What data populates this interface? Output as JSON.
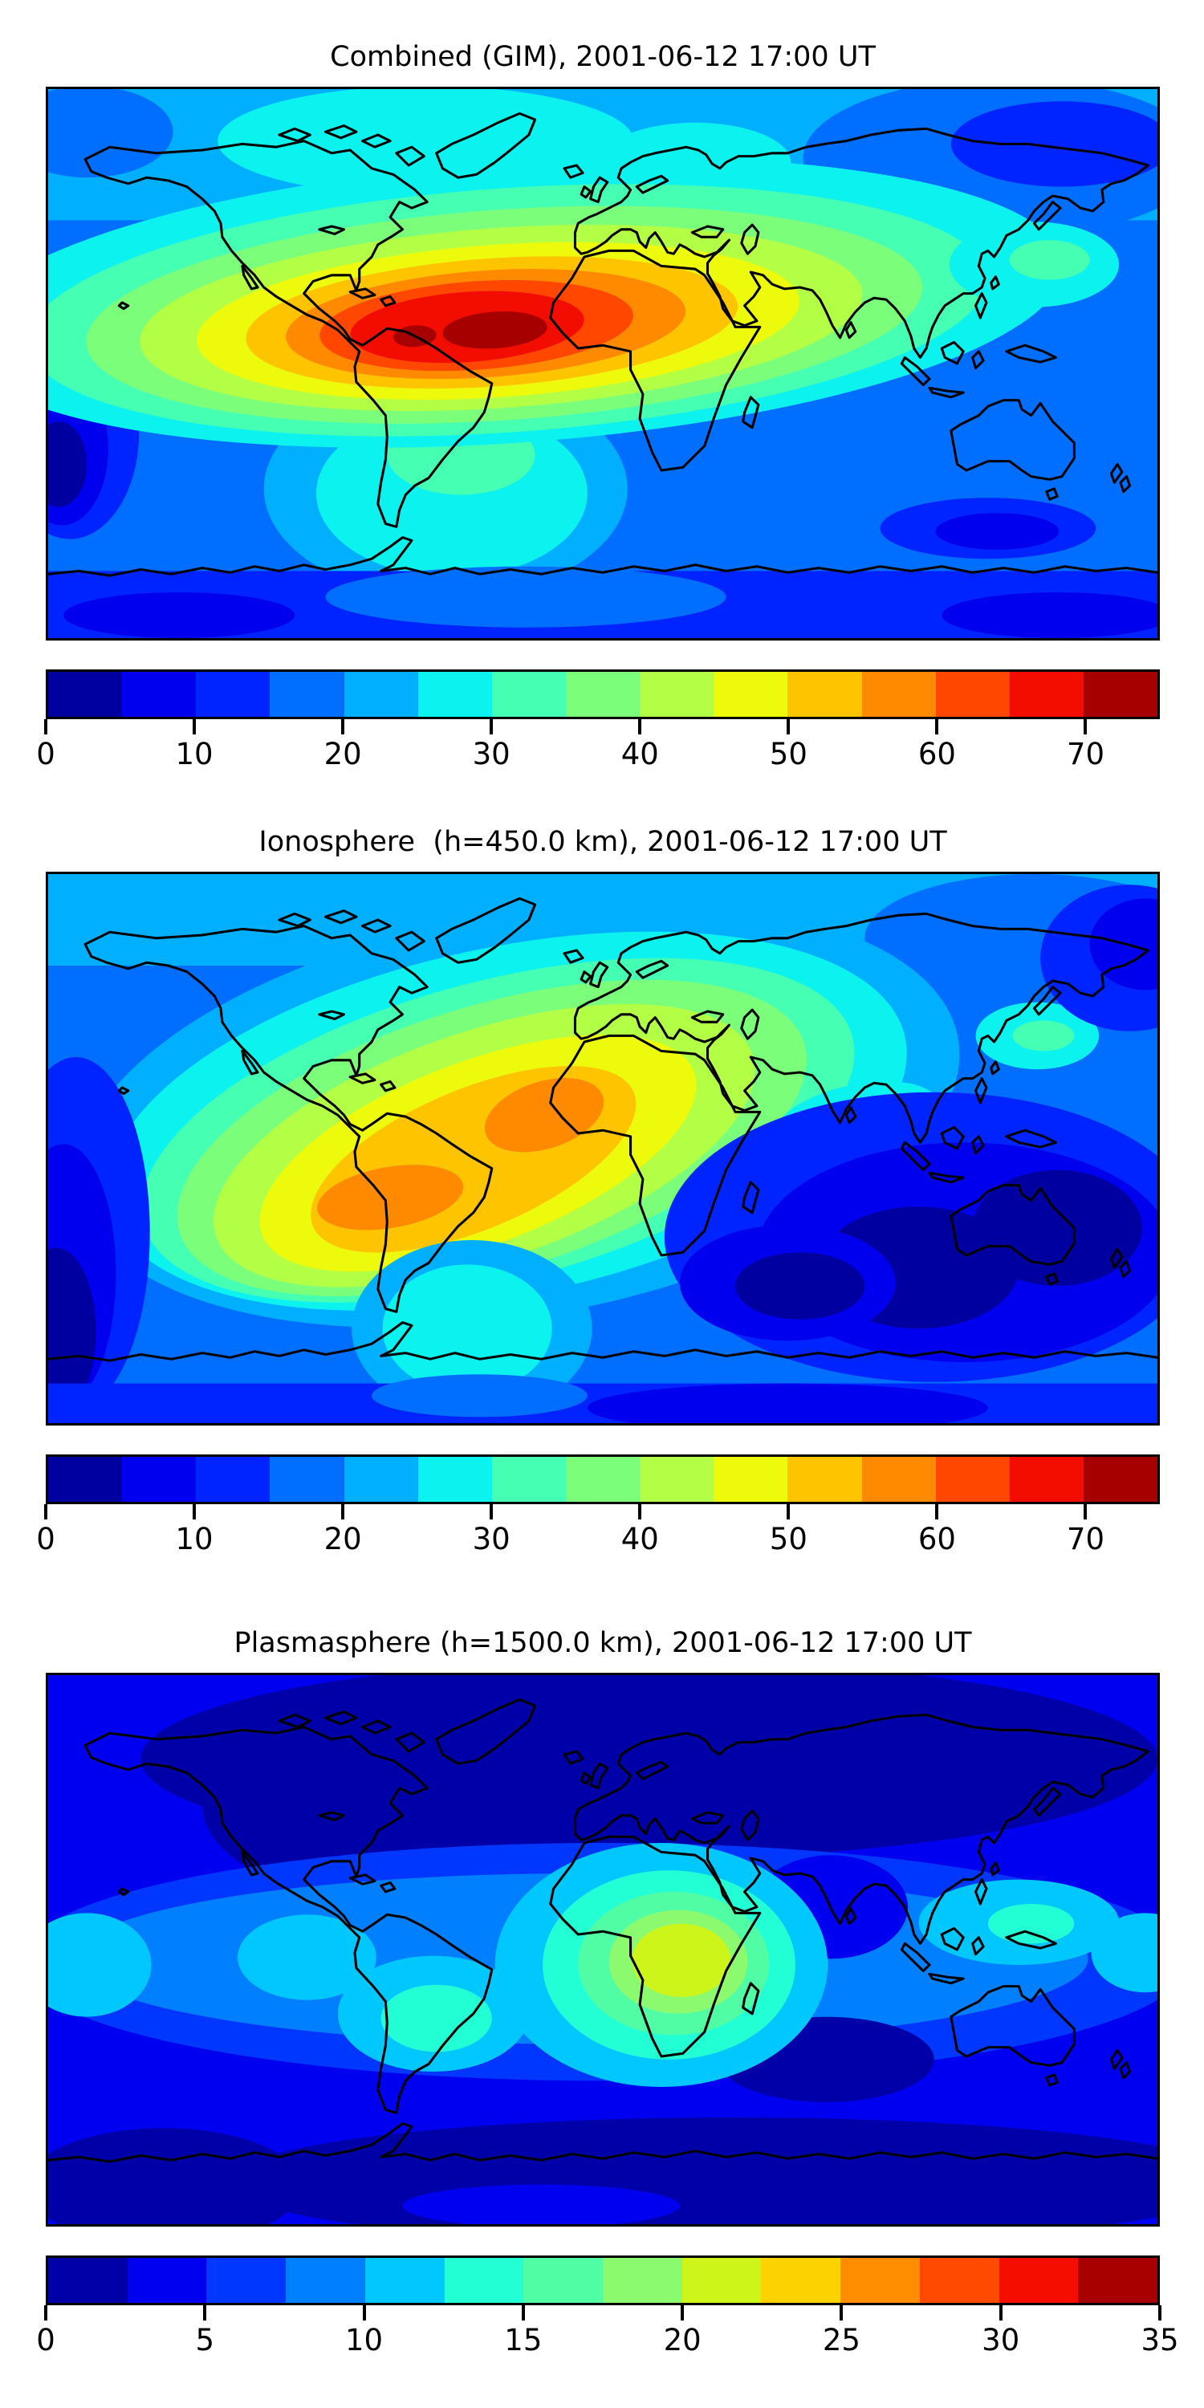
{
  "figure": {
    "kind": "matplotlib-style multi-panel filled contour world maps",
    "background": "#ffffff",
    "text_color": "#000000",
    "coastline_color": "#000000"
  },
  "panels": [
    {
      "id": "combined-gim",
      "title": "Combined (GIM), 2001-06-12 17:00 UT",
      "colorbar": {
        "vmin": 0,
        "vmax": 75,
        "tick_values": [
          0,
          10,
          20,
          30,
          40,
          50,
          60,
          70
        ],
        "tick_labels": [
          "0",
          "10",
          "20",
          "30",
          "40",
          "50",
          "60",
          "70"
        ],
        "colors": [
          "#0000a0",
          "#0000ee",
          "#0024ff",
          "#006eff",
          "#00b0ff",
          "#0cf2ee",
          "#45ffb3",
          "#7bff7b",
          "#b3ff45",
          "#edfa0b",
          "#ffc400",
          "#ff8a00",
          "#ff4700",
          "#f20d00",
          "#a60000"
        ]
      },
      "map": {
        "layers": [
          [
            "r",
            3,
            0,
            0,
            720,
            360,
            0
          ],
          [
            "r",
            4,
            0,
            0,
            720,
            86,
            0
          ],
          [
            "e",
            3,
            620,
            45,
            130,
            52,
            0
          ],
          [
            "e",
            2,
            658,
            36,
            72,
            28,
            0
          ],
          [
            "e",
            3,
            26,
            28,
            55,
            30,
            0
          ],
          [
            "e",
            5,
            245,
            34,
            135,
            36,
            0
          ],
          [
            "e",
            5,
            420,
            48,
            62,
            26,
            0
          ],
          [
            "e",
            4,
            258,
            262,
            118,
            72,
            0
          ],
          [
            "e",
            5,
            262,
            265,
            88,
            55,
            0
          ],
          [
            "e",
            6,
            268,
            240,
            48,
            26,
            0
          ],
          [
            "e",
            2,
            14,
            225,
            45,
            70,
            0
          ],
          [
            "e",
            1,
            9,
            236,
            30,
            50,
            0
          ],
          [
            "e",
            0,
            7,
            246,
            18,
            28,
            0
          ],
          [
            "r",
            2,
            0,
            316,
            720,
            44,
            0
          ],
          [
            "e",
            3,
            310,
            333,
            130,
            20,
            0
          ],
          [
            "e",
            1,
            85,
            345,
            75,
            15,
            0
          ],
          [
            "e",
            1,
            655,
            345,
            75,
            15,
            0
          ],
          [
            "e",
            2,
            610,
            288,
            70,
            20,
            0
          ],
          [
            "e",
            1,
            616,
            290,
            40,
            12,
            0
          ],
          [
            "e",
            5,
            300,
            140,
            360,
            92,
            -4
          ],
          [
            "e",
            6,
            298,
            145,
            312,
            80,
            -4
          ],
          [
            "e",
            7,
            296,
            148,
            272,
            69,
            -4
          ],
          [
            "e",
            8,
            294,
            150,
            235,
            59,
            -4
          ],
          [
            "e",
            9,
            292,
            152,
            196,
            50,
            -4
          ],
          [
            "e",
            10,
            288,
            153,
            160,
            42,
            -4
          ],
          [
            "e",
            11,
            284,
            154,
            130,
            35,
            -4
          ],
          [
            "e",
            12,
            278,
            155,
            102,
            29,
            -4
          ],
          [
            "e",
            13,
            272,
            156,
            76,
            23,
            -4
          ],
          [
            "e",
            14,
            290,
            158,
            34,
            12,
            -4
          ],
          [
            "e",
            14,
            238,
            162,
            14,
            7,
            -4
          ],
          [
            "e",
            5,
            640,
            115,
            55,
            28,
            0
          ],
          [
            "e",
            6,
            650,
            112,
            26,
            13,
            0
          ]
        ]
      }
    },
    {
      "id": "ionosphere",
      "title": "Ionosphere  (h=450.0 km), 2001-06-12 17:00 UT",
      "colorbar": {
        "vmin": 0,
        "vmax": 75,
        "tick_values": [
          0,
          10,
          20,
          30,
          40,
          50,
          60,
          70
        ],
        "tick_labels": [
          "0",
          "10",
          "20",
          "30",
          "40",
          "50",
          "60",
          "70"
        ],
        "colors": [
          "#0000a0",
          "#0000ee",
          "#0024ff",
          "#006eff",
          "#00b0ff",
          "#0cf2ee",
          "#45ffb3",
          "#7bff7b",
          "#b3ff45",
          "#edfa0b",
          "#ffc400",
          "#ff8a00",
          "#ff4700",
          "#f20d00",
          "#a60000"
        ]
      },
      "map": {
        "layers": [
          [
            "r",
            3,
            0,
            0,
            720,
            360,
            0
          ],
          [
            "r",
            4,
            0,
            0,
            720,
            60,
            0
          ],
          [
            "e",
            3,
            640,
            42,
            110,
            42,
            0
          ],
          [
            "e",
            4,
            305,
            158,
            290,
            132,
            -10
          ],
          [
            "e",
            5,
            298,
            162,
            264,
            114,
            -12
          ],
          [
            "e",
            6,
            292,
            168,
            238,
            98,
            -15
          ],
          [
            "e",
            7,
            288,
            173,
            212,
            87,
            -17
          ],
          [
            "e",
            8,
            283,
            178,
            184,
            75,
            -19
          ],
          [
            "e",
            9,
            279,
            183,
            150,
            60,
            -21
          ],
          [
            "e",
            10,
            276,
            187,
            113,
            46,
            -23
          ],
          [
            "e",
            11,
            322,
            158,
            40,
            22,
            -18
          ],
          [
            "e",
            11,
            222,
            212,
            48,
            20,
            -10
          ],
          [
            "e",
            4,
            275,
            298,
            78,
            58,
            0
          ],
          [
            "e",
            5,
            272,
            298,
            55,
            42,
            0
          ],
          [
            "e",
            5,
            642,
            106,
            40,
            22,
            0
          ],
          [
            "e",
            6,
            646,
            106,
            20,
            10,
            0
          ],
          [
            "e",
            5,
            525,
            162,
            55,
            24,
            -12
          ],
          [
            "e",
            6,
            520,
            164,
            28,
            12,
            -12
          ],
          [
            "e",
            7,
            517,
            165,
            11,
            5,
            -12
          ],
          [
            "e",
            2,
            702,
            55,
            58,
            48,
            0
          ],
          [
            "e",
            1,
            712,
            46,
            36,
            30,
            0
          ],
          [
            "e",
            2,
            18,
            235,
            48,
            115,
            0
          ],
          [
            "e",
            1,
            10,
            262,
            34,
            85,
            0
          ],
          [
            "e",
            0,
            5,
            300,
            26,
            55,
            0
          ],
          [
            "e",
            2,
            575,
            238,
            175,
            95,
            0
          ],
          [
            "e",
            1,
            595,
            248,
            135,
            72,
            0
          ],
          [
            "e",
            0,
            565,
            258,
            65,
            40,
            0
          ],
          [
            "e",
            0,
            655,
            232,
            55,
            38,
            0
          ],
          [
            "e",
            1,
            480,
            268,
            70,
            38,
            0
          ],
          [
            "e",
            0,
            488,
            270,
            42,
            22,
            0
          ],
          [
            "r",
            2,
            0,
            334,
            720,
            26,
            0
          ],
          [
            "e",
            1,
            480,
            350,
            130,
            16,
            0
          ],
          [
            "e",
            3,
            280,
            342,
            70,
            14,
            0
          ]
        ]
      }
    },
    {
      "id": "plasmasphere",
      "title": "Plasmasphere (h=1500.0 km), 2001-06-12 17:00 UT",
      "colorbar": {
        "vmin": 0,
        "vmax": 35,
        "tick_values": [
          0,
          5,
          10,
          15,
          20,
          25,
          30,
          35
        ],
        "tick_labels": [
          "0",
          "5",
          "10",
          "15",
          "20",
          "25",
          "30",
          "35"
        ],
        "colors": [
          "#0000a8",
          "#0000f0",
          "#0037ff",
          "#0080ff",
          "#00c8ff",
          "#23ffd4",
          "#50fca4",
          "#8cfa6e",
          "#cdf51a",
          "#fcd200",
          "#ff8d00",
          "#ff4a00",
          "#f50d00",
          "#a80000"
        ]
      },
      "map": {
        "layers": [
          [
            "r",
            1,
            0,
            0,
            720,
            360,
            0
          ],
          [
            "e",
            0,
            390,
            55,
            330,
            65,
            0
          ],
          [
            "e",
            0,
            230,
            85,
            130,
            65,
            0
          ],
          [
            "e",
            2,
            360,
            188,
            380,
            78,
            0
          ],
          [
            "e",
            3,
            345,
            186,
            330,
            56,
            0
          ],
          [
            "e",
            1,
            508,
            152,
            50,
            34,
            0
          ],
          [
            "e",
            0,
            505,
            252,
            70,
            28,
            0
          ],
          [
            "e",
            4,
            25,
            190,
            42,
            34,
            0
          ],
          [
            "e",
            4,
            168,
            185,
            45,
            28,
            0
          ],
          [
            "e",
            4,
            250,
            222,
            62,
            38,
            0
          ],
          [
            "e",
            4,
            398,
            190,
            108,
            80,
            0
          ],
          [
            "e",
            4,
            630,
            162,
            65,
            28,
            0
          ],
          [
            "e",
            4,
            712,
            182,
            35,
            26,
            0
          ],
          [
            "e",
            5,
            252,
            225,
            36,
            22,
            0
          ],
          [
            "e",
            5,
            403,
            190,
            82,
            62,
            0
          ],
          [
            "e",
            5,
            638,
            163,
            28,
            13,
            0
          ],
          [
            "e",
            6,
            406,
            189,
            62,
            47,
            0
          ],
          [
            "e",
            7,
            409,
            188,
            45,
            34,
            0
          ],
          [
            "e",
            8,
            411,
            187,
            32,
            24,
            0
          ],
          [
            "e",
            0,
            445,
            332,
            330,
            42,
            0
          ],
          [
            "e",
            0,
            75,
            335,
            90,
            38,
            0
          ],
          [
            "e",
            1,
            320,
            348,
            90,
            14,
            0
          ]
        ]
      }
    }
  ],
  "chart_data": [
    {
      "type": "filled_contour_map",
      "title": "Combined (GIM), 2001-06-12 17:00 UT",
      "projection": "equirectangular",
      "lon_range": [
        -180,
        180
      ],
      "lat_range": [
        -90,
        90
      ],
      "colormap": "jet (discrete, 15 bands)",
      "contour_levels": [
        0,
        5,
        10,
        15,
        20,
        25,
        30,
        35,
        40,
        45,
        50,
        55,
        60,
        65,
        70,
        75
      ],
      "colorbar_ticks": [
        0,
        10,
        20,
        30,
        40,
        50,
        60,
        70
      ],
      "value_range": [
        0,
        75
      ],
      "peak": {
        "value_band": "70-75",
        "lon": -35,
        "lat": 10,
        "region": "equatorial Atlantic / northern South America"
      },
      "secondary_peak": {
        "value_band": "70-75",
        "lon": -60,
        "lat": 10,
        "region": "Colombia/Venezuela"
      },
      "minima": [
        {
          "value_band": "0-10",
          "region": "far south-east Pacific at left edge, equator to 40S"
        },
        {
          "value_band": "5-10",
          "region": "Antarctic band patches and NE Siberia"
        }
      ],
      "notes": "Broad 25-45 band across Eurasia decreasing eastward; cyan (25-30) over Arctic Canada, Scandinavia and south of South America; yellow (45-50) reaches North Africa and Arabia."
    },
    {
      "type": "filled_contour_map",
      "title": "Ionosphere  (h=450.0 km), 2001-06-12 17:00 UT",
      "projection": "equirectangular",
      "lon_range": [
        -180,
        180
      ],
      "lat_range": [
        -90,
        90
      ],
      "colormap": "jet (discrete, 15 bands)",
      "contour_levels": [
        0,
        5,
        10,
        15,
        20,
        25,
        30,
        35,
        40,
        45,
        50,
        55,
        60,
        65,
        70,
        75
      ],
      "colorbar_ticks": [
        0,
        10,
        20,
        30,
        40,
        50,
        60,
        70
      ],
      "value_range": [
        0,
        75
      ],
      "peak": {
        "value_band": "55-60",
        "lon": -15,
        "lat": 12,
        "region": "West Africa / tropical Atlantic"
      },
      "secondary_peak": {
        "value_band": "55-60",
        "lon": -70,
        "lat": -16,
        "region": "Peru / western Brazil"
      },
      "minima": [
        {
          "value_band": "0-5",
          "region": "southern Indian Ocean west of Australia"
        },
        {
          "value_band": "0-10",
          "region": "south-east Pacific at left edge and north-east Pacific corner"
        }
      ],
      "notes": "Tilted yellow band (45-55) across equatorial South America and Atlantic; cyan (25-30) over North America, Europe and below southern South America; large dark (<10) region over Indian Ocean and Australia."
    },
    {
      "type": "filled_contour_map",
      "title": "Plasmasphere (h=1500.0 km), 2001-06-12 17:00 UT",
      "projection": "equirectangular",
      "lon_range": [
        -180,
        180
      ],
      "lat_range": [
        -90,
        90
      ],
      "colormap": "jet (discrete, 14 bands)",
      "contour_levels": [
        0,
        2.5,
        5,
        7.5,
        10,
        12.5,
        15,
        17.5,
        20,
        22.5,
        25,
        27.5,
        30,
        32.5,
        35
      ],
      "colorbar_ticks": [
        0,
        5,
        10,
        15,
        20,
        25,
        30,
        35
      ],
      "value_range": [
        0,
        35
      ],
      "peak": {
        "value_band": "20-22.5",
        "lon": 25,
        "lat": -2,
        "region": "central Africa (yellow-green core)"
      },
      "minima": [
        {
          "value_band": "0-2.5",
          "region": "entire high-northern-latitude band (North America, Europe, Siberia)"
        },
        {
          "value_band": "0-2.5",
          "region": "southern ocean band and south Indian Ocean"
        }
      ],
      "notes": "Mostly 2.5-10 blues; cyan (10-12.5) equatorial patches in east Pacific, South America, SE Asia and west Pacific; concentric rings up to 20-22.5 centered on central Africa; dark (<2.5) patch over India/Arabian Sea."
    }
  ]
}
